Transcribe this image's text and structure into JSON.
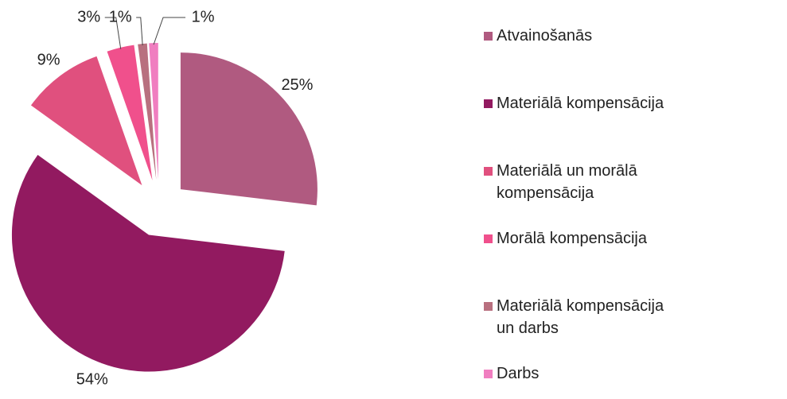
{
  "chart_data": {
    "type": "pie",
    "categories": [
      "Atvainošanās",
      "Materiālā kompensācija",
      "Materiālā un morālā kompensācija",
      "Morālā kompensācija",
      "Materiālā kompensācija un darbs",
      "Darbs"
    ],
    "values": [
      25,
      54,
      9,
      3,
      1,
      1
    ],
    "value_labels": [
      "25%",
      "54%",
      "9%",
      "3%",
      "1%",
      "1%"
    ],
    "colors": [
      "#b05a80",
      "#921a60",
      "#e0507e",
      "#f0508c",
      "#b8707f",
      "#f07ec0"
    ],
    "exploded": true,
    "legend": "right"
  }
}
